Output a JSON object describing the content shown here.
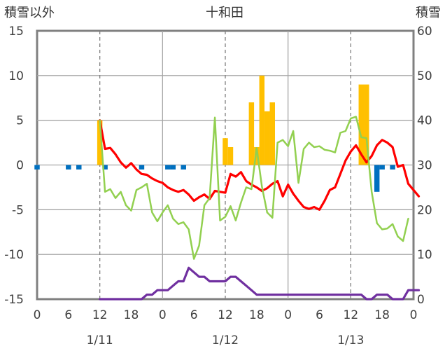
{
  "chart_data": {
    "type": "bar+line",
    "title": "十和田",
    "ylabel_left": "積雪以外",
    "ylabel_right": "積雪",
    "y_left": {
      "min": -15,
      "max": 15,
      "ticks": [
        "-15",
        "-10",
        "-5",
        "0",
        "5",
        "10",
        "15"
      ]
    },
    "y_right": {
      "min": 0,
      "max": 60,
      "ticks": [
        "0",
        "10",
        "20",
        "30",
        "40",
        "50",
        "60"
      ]
    },
    "x": {
      "min": 0,
      "max": 72,
      "tick_hours": [
        0,
        6,
        12,
        18,
        24,
        30,
        36,
        42,
        48,
        54,
        60,
        66,
        72
      ],
      "tick_labels": [
        "0",
        "6",
        "12",
        "18",
        "0",
        "6",
        "12",
        "18",
        "0",
        "6",
        "12",
        "18",
        "0"
      ],
      "date_labels": [
        {
          "label": "1/11",
          "hour": 12
        },
        {
          "label": "1/12",
          "hour": 36
        },
        {
          "label": "1/13",
          "hour": 60
        }
      ],
      "dashed_lines_hours": [
        12,
        36,
        60
      ],
      "solid_lines_hours": [
        24,
        48
      ]
    },
    "colors": {
      "precip_bar": "#ffc000",
      "negative_bar": "#0070c0",
      "temperature": "#ff0000",
      "wind_speed": "#92d050",
      "snow_depth": "#7030a0",
      "grid": "#a6a6a6",
      "frame": "#808080"
    },
    "series": [
      {
        "key": "precip_bar",
        "kind": "bar",
        "axis": "left",
        "color": "#ffc000",
        "points": [
          [
            12,
            5
          ],
          [
            36,
            3
          ],
          [
            37,
            2
          ],
          [
            41,
            7
          ],
          [
            42,
            2
          ],
          [
            43,
            10
          ],
          [
            44,
            6
          ],
          [
            45,
            7
          ],
          [
            62,
            9
          ],
          [
            63,
            9
          ]
        ]
      },
      {
        "key": "negative_bar",
        "kind": "bar",
        "axis": "left",
        "color": "#0070c0",
        "points": [
          [
            0,
            -0.5
          ],
          [
            6,
            -0.5
          ],
          [
            8,
            -0.5
          ],
          [
            13,
            -0.5
          ],
          [
            20,
            -0.5
          ],
          [
            25,
            -0.5
          ],
          [
            26,
            -0.5
          ],
          [
            28,
            -0.5
          ],
          [
            65,
            -3
          ],
          [
            66,
            -0.5
          ],
          [
            68,
            -0.5
          ]
        ]
      },
      {
        "key": "temperature",
        "kind": "line",
        "axis": "left",
        "color": "#ff0000",
        "points": [
          [
            12,
            5
          ],
          [
            13,
            1.8
          ],
          [
            14,
            1.9
          ],
          [
            15,
            1.2
          ],
          [
            16,
            0.3
          ],
          [
            17,
            -0.3
          ],
          [
            18,
            0.2
          ],
          [
            19,
            -0.5
          ],
          [
            20,
            -1
          ],
          [
            21,
            -1.1
          ],
          [
            22,
            -1.5
          ],
          [
            23,
            -1.8
          ],
          [
            24,
            -2
          ],
          [
            25,
            -2.5
          ],
          [
            26,
            -2.8
          ],
          [
            27,
            -3
          ],
          [
            28,
            -2.8
          ],
          [
            29,
            -3.3
          ],
          [
            30,
            -4
          ],
          [
            31,
            -3.6
          ],
          [
            32,
            -3.3
          ],
          [
            33,
            -3.8
          ],
          [
            34,
            -2.9
          ],
          [
            35,
            -3
          ],
          [
            36,
            -3.1
          ],
          [
            37,
            -1
          ],
          [
            38,
            -1.3
          ],
          [
            39,
            -0.8
          ],
          [
            40,
            -1.8
          ],
          [
            41,
            -2.2
          ],
          [
            42,
            -2.5
          ],
          [
            43,
            -2.9
          ],
          [
            44,
            -2.6
          ],
          [
            45,
            -2.1
          ],
          [
            46,
            -1.8
          ],
          [
            47,
            -3.5
          ],
          [
            48,
            -2.2
          ],
          [
            49,
            -3.2
          ],
          [
            50,
            -4
          ],
          [
            51,
            -4.7
          ],
          [
            52,
            -4.9
          ],
          [
            53,
            -4.7
          ],
          [
            54,
            -5
          ],
          [
            55,
            -4
          ],
          [
            56,
            -2.8
          ],
          [
            57,
            -2.5
          ],
          [
            58,
            -1
          ],
          [
            59,
            0.5
          ],
          [
            60,
            1.5
          ],
          [
            61,
            2.2
          ],
          [
            62,
            1.2
          ],
          [
            63,
            0.3
          ],
          [
            64,
            1
          ],
          [
            65,
            2.2
          ],
          [
            66,
            2.8
          ],
          [
            67,
            2.5
          ],
          [
            68,
            2
          ],
          [
            69,
            -0.2
          ],
          [
            70,
            0
          ],
          [
            71,
            -2.1
          ],
          [
            72,
            -2.8
          ],
          [
            73,
            -3.5
          ]
        ]
      },
      {
        "key": "wind_speed",
        "kind": "line",
        "axis": "left",
        "color": "#92d050",
        "points": [
          [
            12,
            5
          ],
          [
            13,
            -3
          ],
          [
            14,
            -2.7
          ],
          [
            15,
            -3.7
          ],
          [
            16,
            -3
          ],
          [
            17,
            -4.5
          ],
          [
            18,
            -5.1
          ],
          [
            19,
            -2.8
          ],
          [
            20,
            -2.5
          ],
          [
            21,
            -2.1
          ],
          [
            22,
            -5.3
          ],
          [
            23,
            -6.3
          ],
          [
            24,
            -5.3
          ],
          [
            25,
            -4.5
          ],
          [
            26,
            -6
          ],
          [
            27,
            -6.6
          ],
          [
            28,
            -6.4
          ],
          [
            29,
            -7.2
          ],
          [
            30,
            -10.5
          ],
          [
            31,
            -9
          ],
          [
            32,
            -4.5
          ],
          [
            33,
            -3.7
          ],
          [
            34,
            5.3
          ],
          [
            35,
            -6.2
          ],
          [
            36,
            -5.8
          ],
          [
            37,
            -4.6
          ],
          [
            38,
            -6.2
          ],
          [
            39,
            -4.2
          ],
          [
            40,
            -2.5
          ],
          [
            41,
            -2.7
          ],
          [
            42,
            1.9
          ],
          [
            43,
            -2.4
          ],
          [
            44,
            -5.3
          ],
          [
            45,
            -5.9
          ],
          [
            46,
            2.5
          ],
          [
            47,
            2.8
          ],
          [
            48,
            2.1
          ],
          [
            49,
            3.8
          ],
          [
            50,
            -2
          ],
          [
            51,
            1.8
          ],
          [
            52,
            2.5
          ],
          [
            53,
            2
          ],
          [
            54,
            2.1
          ],
          [
            55,
            1.7
          ],
          [
            56,
            1.6
          ],
          [
            57,
            1.4
          ],
          [
            58,
            3.6
          ],
          [
            59,
            3.8
          ],
          [
            60,
            5.2
          ],
          [
            61,
            5.4
          ],
          [
            62,
            3.1
          ],
          [
            63,
            3
          ],
          [
            64,
            -3
          ],
          [
            65,
            -6.5
          ],
          [
            66,
            -7.2
          ],
          [
            67,
            -7.1
          ],
          [
            68,
            -6.6
          ],
          [
            69,
            -8
          ],
          [
            70,
            -8.5
          ],
          [
            71,
            -6
          ]
        ]
      },
      {
        "key": "snow_depth",
        "kind": "line",
        "axis": "right",
        "color": "#7030a0",
        "points": [
          [
            12,
            0
          ],
          [
            20,
            0
          ],
          [
            21,
            1
          ],
          [
            22,
            1
          ],
          [
            23,
            2
          ],
          [
            24,
            2
          ],
          [
            25,
            2
          ],
          [
            26,
            3
          ],
          [
            27,
            4
          ],
          [
            28,
            4
          ],
          [
            29,
            7
          ],
          [
            30,
            6
          ],
          [
            31,
            5
          ],
          [
            32,
            5
          ],
          [
            33,
            4
          ],
          [
            34,
            4
          ],
          [
            35,
            4
          ],
          [
            36,
            4
          ],
          [
            37,
            5
          ],
          [
            38,
            5
          ],
          [
            39,
            4
          ],
          [
            40,
            3
          ],
          [
            41,
            2
          ],
          [
            42,
            1
          ],
          [
            43,
            1
          ],
          [
            62,
            1
          ],
          [
            63,
            0
          ],
          [
            64,
            0
          ],
          [
            65,
            1
          ],
          [
            66,
            1
          ],
          [
            67,
            1
          ],
          [
            68,
            0
          ],
          [
            69,
            0
          ],
          [
            70,
            0
          ],
          [
            71,
            2
          ],
          [
            72,
            2
          ],
          [
            73,
            2
          ]
        ]
      }
    ]
  }
}
